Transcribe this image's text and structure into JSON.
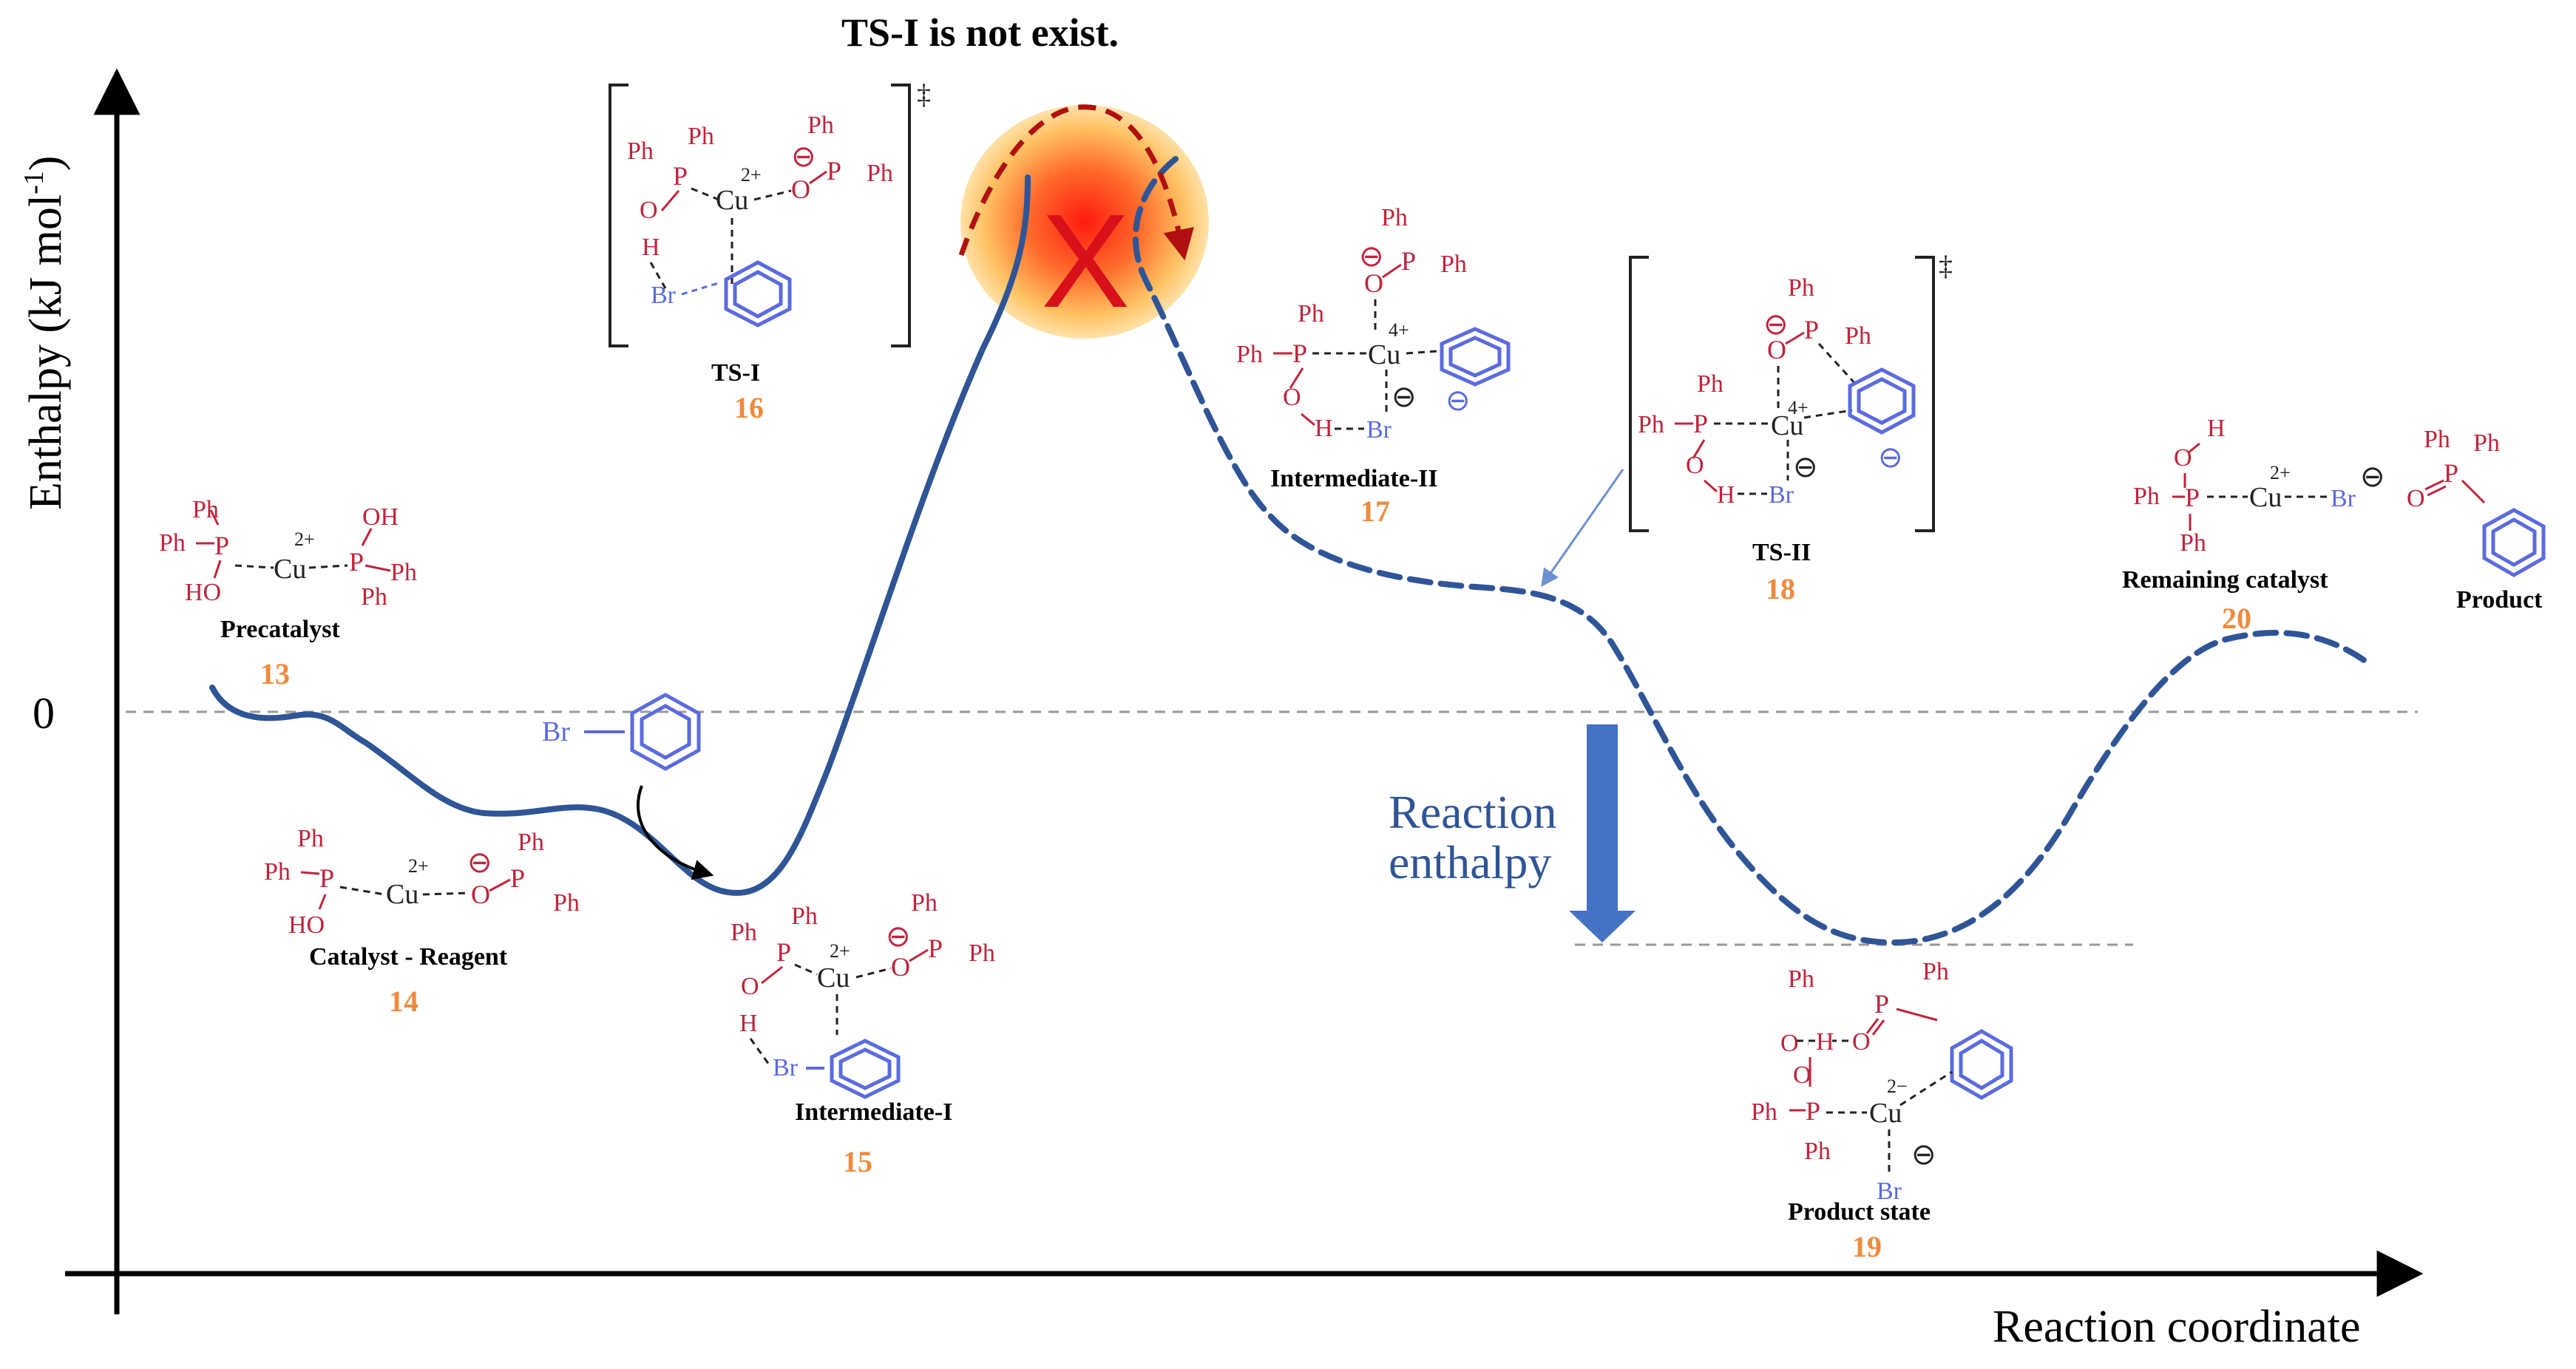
{
  "title_note": "TS-I is not exist.",
  "axes": {
    "y_label": "Enthalpy (kJ mol",
    "y_sup": "-1",
    "y_close": ")",
    "x_label": "Reaction coordinate",
    "zero_tick": "0"
  },
  "reaction_enthalpy": [
    "Reaction",
    "enthalpy"
  ],
  "species": [
    {
      "name": "Precatalyst",
      "number": "13"
    },
    {
      "name": "Catalyst - Reagent",
      "number": "14"
    },
    {
      "name": "Intermediate-I",
      "number": "15"
    },
    {
      "name": "TS-I",
      "number": "16"
    },
    {
      "name": "Intermediate-II",
      "number": "17"
    },
    {
      "name": "TS-II",
      "number": "18"
    },
    {
      "name": "Product state",
      "number": "19"
    },
    {
      "name": "Remaining catalyst",
      "number": "20"
    },
    {
      "name": "Product",
      "number": ""
    }
  ],
  "atoms": {
    "ph": "Ph",
    "p": "P",
    "o": "O",
    "h": "H",
    "oh": "OH",
    "ho": "HO",
    "cu": "Cu",
    "br": "Br",
    "cu2": "2+",
    "cu4": "4+",
    "cu2m": "2−",
    "minus": "⊖",
    "dagger": "‡",
    "cross": "X"
  },
  "colors": {
    "curve": "#2F5597",
    "arrow": "#4472C4",
    "phosphorus": "#C0243C",
    "bromine_ring": "#5B6BE0",
    "label_number": "#F08A3C",
    "highlight": "#FF3B1F"
  }
}
